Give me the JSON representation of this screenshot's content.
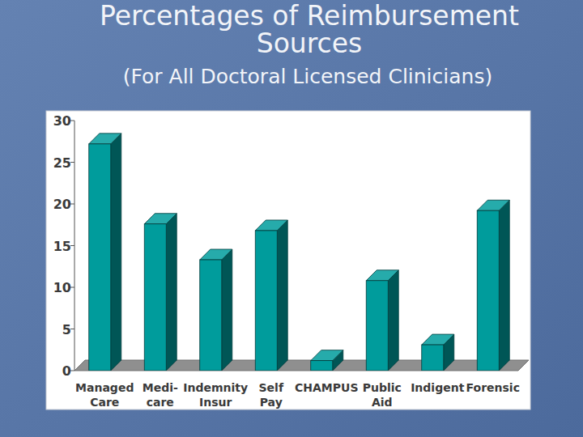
{
  "chart_data": {
    "type": "bar",
    "title": "Percentages of Reimbursement Sources",
    "subtitle": "(For All Doctoral Licensed Clinicians)",
    "categories": [
      "Managed\nCare",
      "Medi-\ncare",
      "Indemnity\nInsur",
      "Self\nPay",
      "CHAMPUS",
      "Public\nAid",
      "Indigent",
      "Forensic"
    ],
    "values": [
      27.2,
      17.6,
      13.3,
      16.8,
      1.2,
      10.8,
      3.1,
      19.2
    ],
    "color": "#009c9c",
    "ylim": [
      0,
      30
    ],
    "yticks": [
      0,
      5,
      10,
      15,
      20,
      25,
      30
    ],
    "grid": false
  }
}
